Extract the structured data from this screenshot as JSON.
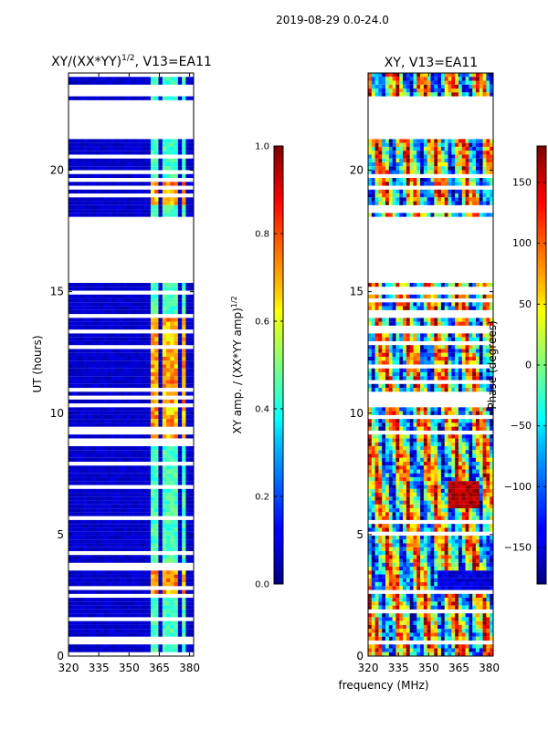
{
  "chart_data": {
    "suptitle": "2019-08-29 0.0-24.0",
    "shared_xlabel": "frequency (MHz)",
    "panels": [
      {
        "type": "heatmap",
        "title": "XY/(XX*YY)^1/2, V13=EA11",
        "title_main": "XY/(XX*YY)",
        "title_sup": "1/2",
        "title_tail": ", V13=EA11",
        "xlim": [
          320,
          382
        ],
        "ylim": [
          0,
          24
        ],
        "xticks": [
          320,
          335,
          350,
          365,
          380
        ],
        "yticks": [
          0,
          5,
          10,
          15,
          20
        ],
        "ylabel": "UT (hours)",
        "colormap": "jet",
        "data_gaps_hours": [
          [
            21.3,
            22.9
          ],
          [
            15.4,
            18.1
          ]
        ],
        "bright_channels_mhz": [
          363,
          368,
          372,
          377
        ],
        "colorbar": {
          "label": "XY amp. / (XX*YY amp)^1/2",
          "label_main": "XY amp. / (XX*YY amp)",
          "label_sup": "1/2",
          "range": [
            0.0,
            1.0
          ],
          "ticks": [
            "0.0",
            "0.2",
            "0.4",
            "0.6",
            "0.8",
            "1.0"
          ],
          "tick_values": [
            0.0,
            0.2,
            0.4,
            0.6,
            0.8,
            1.0
          ]
        }
      },
      {
        "type": "heatmap",
        "title": "XY, V13=EA11",
        "xlim": [
          320,
          382
        ],
        "ylim": [
          0,
          24
        ],
        "xticks": [
          320,
          335,
          350,
          365,
          380
        ],
        "yticks": [
          0,
          5,
          10,
          15,
          20
        ],
        "colormap": "jet",
        "data_gaps_hours": [
          [
            21.3,
            22.9
          ],
          [
            15.4,
            18.1
          ]
        ],
        "colorbar": {
          "label": "Phase (degrees)",
          "range": [
            -180,
            180
          ],
          "ticks": [
            "150",
            "100",
            "50",
            "0",
            "−50",
            "−100",
            "−150"
          ],
          "tick_values": [
            150,
            100,
            50,
            0,
            -50,
            -100,
            -150
          ]
        }
      }
    ]
  }
}
